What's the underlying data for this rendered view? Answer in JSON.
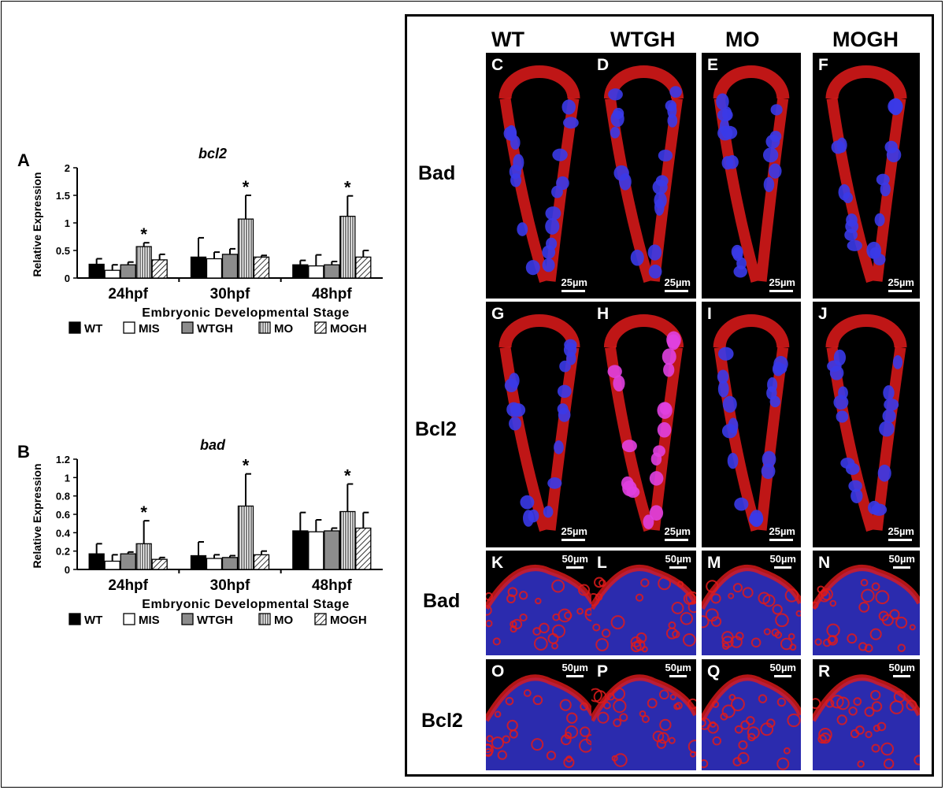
{
  "chart_data": [
    {
      "type": "bar",
      "panel_label": "A",
      "title": "bcl2",
      "ylabel": "Relative Expression",
      "xlabel": "Embryonic Developmental Stage",
      "categories": [
        "24hpf",
        "30hpf",
        "48hpf"
      ],
      "ylim": [
        0,
        2
      ],
      "yticks": [
        "0",
        "0.5",
        "1",
        "1.5",
        "2"
      ],
      "series": [
        {
          "name": "WT",
          "values": [
            0.25,
            0.38,
            0.24
          ],
          "errors": [
            0.1,
            0.35,
            0.08
          ]
        },
        {
          "name": "MIS",
          "values": [
            0.14,
            0.35,
            0.22
          ],
          "errors": [
            0.1,
            0.12,
            0.2
          ]
        },
        {
          "name": "WTGH",
          "values": [
            0.24,
            0.43,
            0.24
          ],
          "errors": [
            0.05,
            0.1,
            0.06
          ]
        },
        {
          "name": "MO",
          "values": [
            0.57,
            1.07,
            1.12
          ],
          "errors": [
            0.07,
            0.43,
            0.37
          ]
        },
        {
          "name": "MOGH",
          "values": [
            0.33,
            0.38,
            0.38
          ],
          "errors": [
            0.1,
            0.03,
            0.12
          ]
        }
      ],
      "significance": [
        "*",
        "*",
        "*"
      ],
      "legend_position": "bottom"
    },
    {
      "type": "bar",
      "panel_label": "B",
      "title": "bad",
      "ylabel": "Relative Expression",
      "xlabel": "Embryonic Developmental Stage",
      "categories": [
        "24hpf",
        "30hpf",
        "48hpf"
      ],
      "ylim": [
        0,
        1.2
      ],
      "yticks": [
        "0",
        "0.2",
        "0.4",
        "0.6",
        "0.8",
        "1",
        "1.2"
      ],
      "series": [
        {
          "name": "WT",
          "values": [
            0.17,
            0.15,
            0.42
          ],
          "errors": [
            0.11,
            0.15,
            0.2
          ]
        },
        {
          "name": "MIS",
          "values": [
            0.09,
            0.12,
            0.41
          ],
          "errors": [
            0.07,
            0.04,
            0.13
          ]
        },
        {
          "name": "WTGH",
          "values": [
            0.17,
            0.13,
            0.42
          ],
          "errors": [
            0.02,
            0.02,
            0.03
          ]
        },
        {
          "name": "MO",
          "values": [
            0.28,
            0.69,
            0.63
          ],
          "errors": [
            0.25,
            0.35,
            0.3
          ]
        },
        {
          "name": "MOGH",
          "values": [
            0.11,
            0.16,
            0.45
          ],
          "errors": [
            0.02,
            0.04,
            0.17
          ]
        }
      ],
      "significance": [
        "*",
        "*",
        "*"
      ],
      "legend_position": "bottom"
    }
  ],
  "micrographs": {
    "column_headers": [
      "WT",
      "WTGH",
      "MO",
      "MOGH"
    ],
    "row_headers": [
      "Bad",
      "Bcl2",
      "Bad",
      "Bcl2"
    ],
    "tiles": [
      {
        "label": "C",
        "scale": "25µm"
      },
      {
        "label": "D",
        "scale": "25µm"
      },
      {
        "label": "E",
        "scale": "25µm"
      },
      {
        "label": "F",
        "scale": "25µm"
      },
      {
        "label": "G",
        "scale": "25µm"
      },
      {
        "label": "H",
        "scale": "25µm"
      },
      {
        "label": "I",
        "scale": "25µm"
      },
      {
        "label": "J",
        "scale": "25µm"
      },
      {
        "label": "K",
        "scale": "50µm"
      },
      {
        "label": "L",
        "scale": "50µm"
      },
      {
        "label": "M",
        "scale": "50µm"
      },
      {
        "label": "N",
        "scale": "50µm"
      },
      {
        "label": "O",
        "scale": "50µm"
      },
      {
        "label": "P",
        "scale": "50µm"
      },
      {
        "label": "Q",
        "scale": "50µm"
      },
      {
        "label": "R",
        "scale": "50µm"
      }
    ],
    "colors": {
      "stain": "#e01a1a",
      "nucleus": "#3a3ae8",
      "overlap": "#e040e0",
      "background": "#000000"
    }
  }
}
